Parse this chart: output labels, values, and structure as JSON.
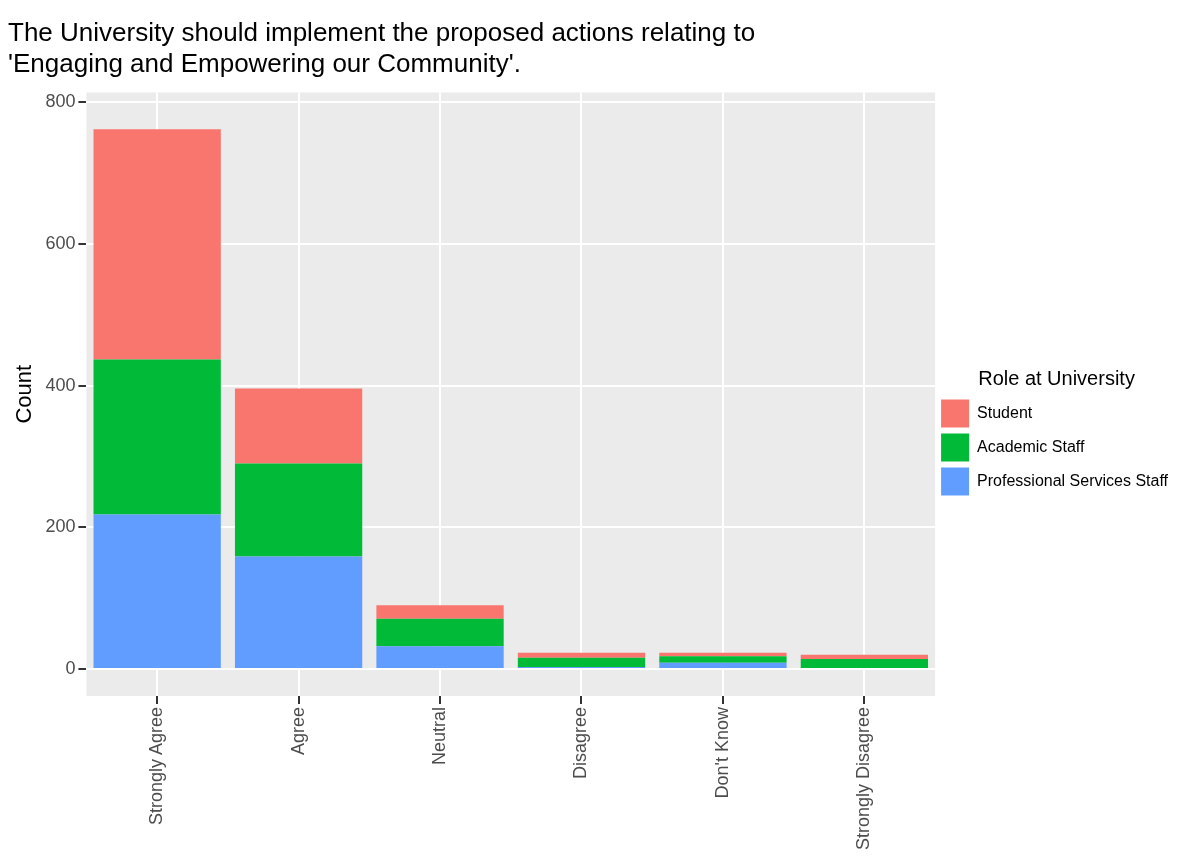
{
  "chart_data": {
    "type": "bar",
    "title": "The University should implement the proposed actions relating to\n'Engaging and Empowering our Community'.",
    "ylabel": "Count",
    "legend_title": "Role at University",
    "categories": [
      "Strongly Agree",
      "Agree",
      "Neutral",
      "Disagree",
      "Don't Know",
      "Strongly Disagree"
    ],
    "series": [
      {
        "name": "Professional Services Staff",
        "color": "#619cff",
        "values": [
          218,
          159,
          32,
          3,
          9,
          0
        ]
      },
      {
        "name": "Academic Staff",
        "color": "#00ba38",
        "values": [
          219,
          131,
          39,
          13,
          9,
          14
        ]
      },
      {
        "name": "Student",
        "color": "#f8766d",
        "values": [
          325,
          106,
          19,
          7,
          5,
          6
        ]
      }
    ],
    "stacked": true,
    "ylim": [
      -38,
      814
    ],
    "yticks": [
      0,
      200,
      400,
      600,
      800
    ],
    "grid": true,
    "legend": "right"
  }
}
